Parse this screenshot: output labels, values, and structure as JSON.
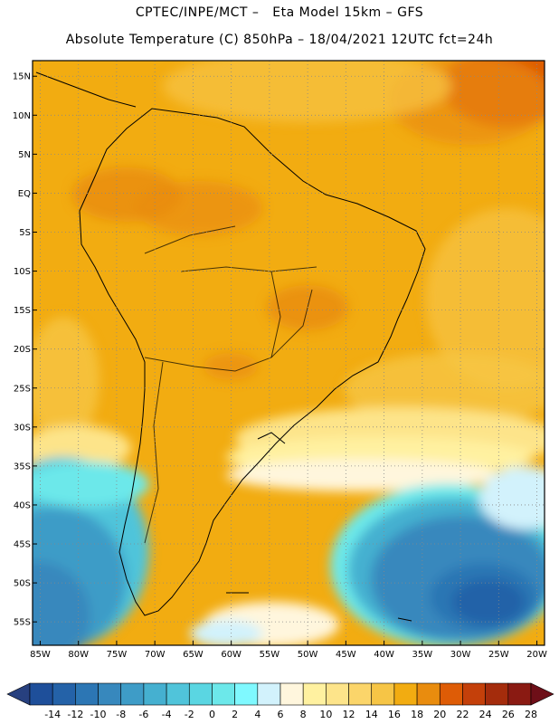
{
  "header": {
    "line1": "CPTEC/INPE/MCT –   Eta Model 15km – GFS",
    "line2": "Absolute Temperature (C) 850hPa – 18/04/2021 12UTC fct=24h"
  },
  "map": {
    "lat_labels": [
      "15N",
      "10N",
      "5N",
      "EQ",
      "5S",
      "10S",
      "15S",
      "20S",
      "25S",
      "30S",
      "35S",
      "40S",
      "45S",
      "50S",
      "55S"
    ],
    "lon_labels": [
      "85W",
      "80W",
      "75W",
      "70W",
      "65W",
      "60W",
      "55W",
      "50W",
      "45W",
      "40W",
      "35W",
      "30W",
      "25W",
      "20W"
    ],
    "lat_values": [
      15,
      10,
      5,
      0,
      -5,
      -10,
      -15,
      -20,
      -25,
      -30,
      -35,
      -40,
      -45,
      -50,
      -55
    ],
    "lon_values": [
      -85,
      -80,
      -75,
      -70,
      -65,
      -60,
      -55,
      -50,
      -45,
      -40,
      -35,
      -30,
      -25,
      -20
    ],
    "lat_range": [
      -58,
      17
    ],
    "lon_range": [
      -86,
      -19
    ],
    "gridlines": "dotted"
  },
  "colorbar": {
    "labels": [
      "-14",
      "-12",
      "-10",
      "-8",
      "-6",
      "-4",
      "-2",
      "0",
      "2",
      "4",
      "6",
      "8",
      "10",
      "12",
      "14",
      "16",
      "18",
      "20",
      "22",
      "24",
      "26",
      "28"
    ],
    "colors": [
      "#27407f",
      "#1e4f9a",
      "#2462a8",
      "#2c76b4",
      "#3788bd",
      "#3e9cc7",
      "#45b0d0",
      "#50c4da",
      "#5ad6e2",
      "#6ce8ea",
      "#7ff9ff",
      "#d2f2fc",
      "#fff6dd",
      "#fff1a0",
      "#fde48a",
      "#fbd56a",
      "#f6c546",
      "#f2ac11",
      "#e98c0e",
      "#de5c06",
      "#c4400a",
      "#a42c0c",
      "#8a1a12",
      "#6e0f18"
    ]
  }
}
